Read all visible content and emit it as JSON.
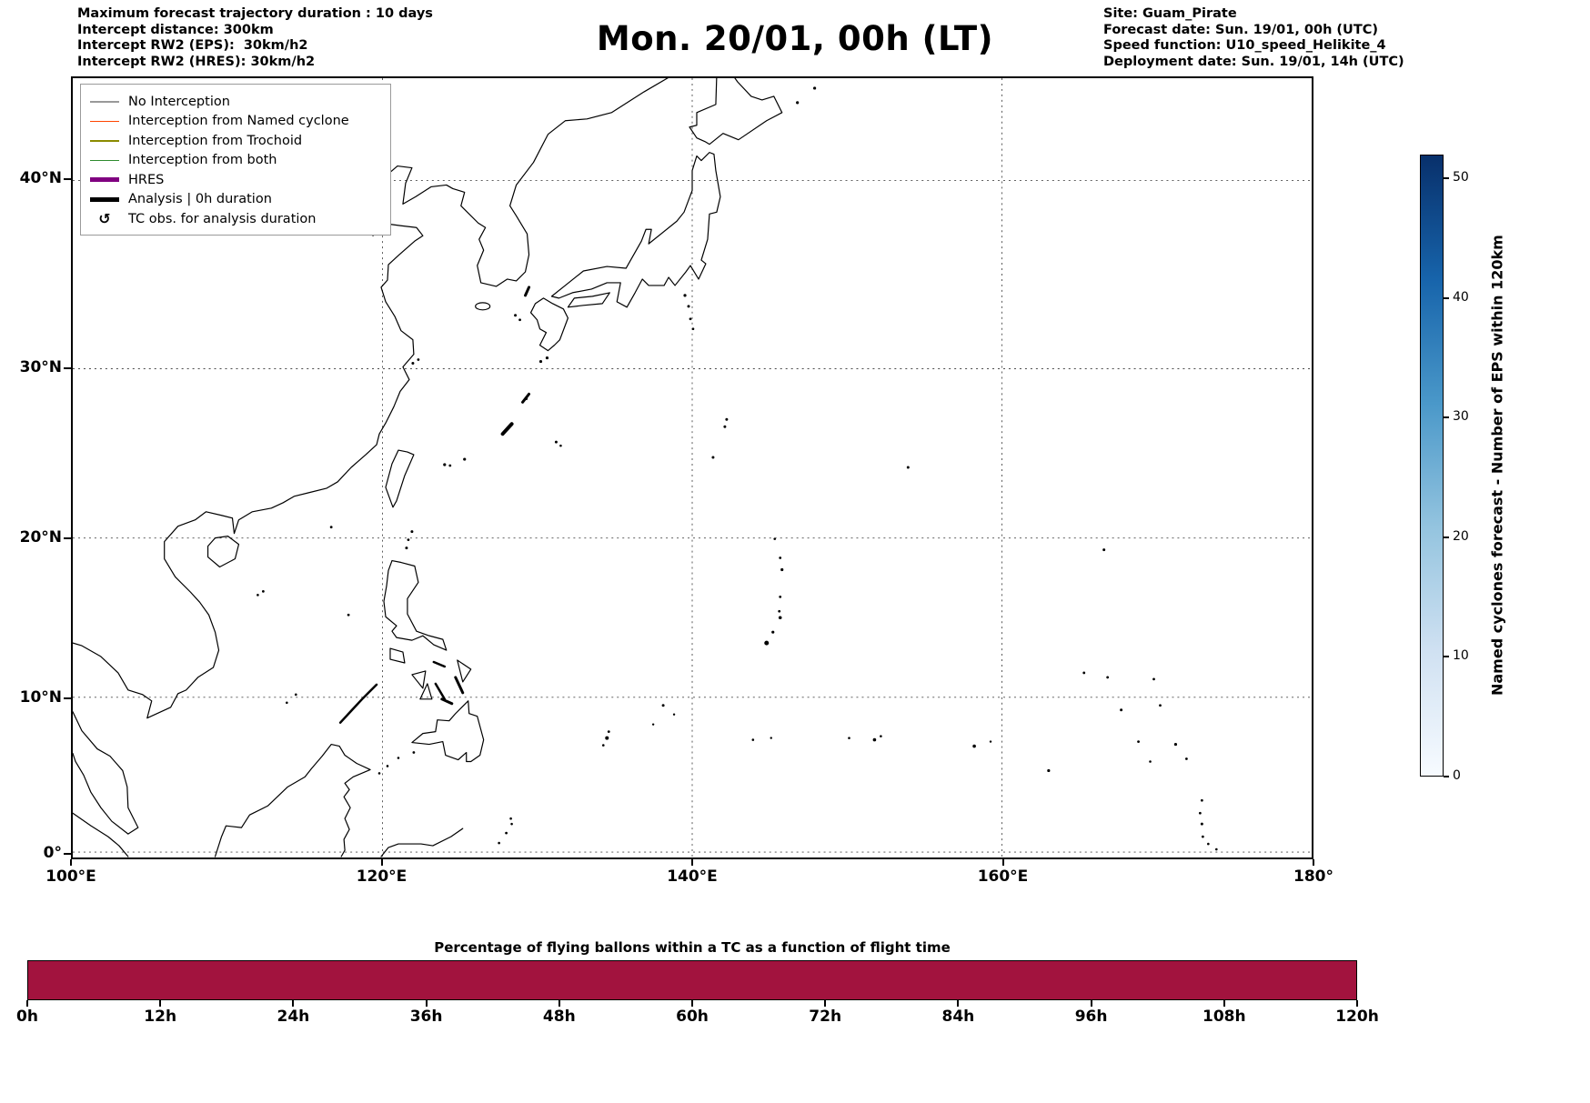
{
  "header": {
    "left_info": [
      "Maximum forecast trajectory duration : 10 days",
      "Intercept distance: 300km",
      "Intercept RW2 (EPS):  30km/h2",
      "Intercept RW2 (HRES): 30km/h2"
    ],
    "title": "Mon. 20/01, 00h (LT)",
    "right_info": [
      "Site: Guam_Pirate",
      "Forecast date: Sun. 19/01, 00h (UTC)",
      "Speed function: U10_speed_Helikite_4",
      "Deployment date: Sun. 19/01, 14h (UTC)"
    ]
  },
  "map": {
    "x_tick_labels": [
      "100°E",
      "120°E",
      "140°E",
      "160°E",
      "180°"
    ],
    "y_tick_labels": [
      "40°N",
      "30°N",
      "20°N",
      "10°N",
      "0°"
    ],
    "legend_items": [
      {
        "label": "No Interception",
        "color": "#999999",
        "line_width": 1.5
      },
      {
        "label": "Interception from Named cyclone",
        "color": "#ff4500",
        "line_width": 1.5
      },
      {
        "label": "Interception from Trochoid",
        "color": "#8b8b00",
        "line_width": 1.5
      },
      {
        "label": "Interception from both",
        "color": "#2e8b2e",
        "line_width": 1.5
      },
      {
        "label": "HRES",
        "color": "#800080",
        "line_width": 5
      },
      {
        "label": "Analysis | 0h duration",
        "color": "#000000",
        "line_width": 5
      },
      {
        "label": "TC obs. for analysis duration",
        "symbol": "↺",
        "color": "#000000"
      }
    ]
  },
  "colorbar": {
    "label": "Named cyclones forecast - Number of EPS within 120km",
    "tick_labels": [
      "0",
      "10",
      "20",
      "30",
      "40",
      "50"
    ],
    "tick_values": [
      0,
      10,
      20,
      30,
      40,
      50
    ],
    "vmin": 0,
    "vmax": 52,
    "colors": [
      "#f7fbff",
      "#d0e1f2",
      "#94c4df",
      "#4a98c9",
      "#1764ab",
      "#08306b"
    ]
  },
  "bottom_chart": {
    "title": "Percentage of flying ballons within a TC as a function of flight time",
    "x_tick_labels": [
      "0h",
      "12h",
      "24h",
      "36h",
      "48h",
      "60h",
      "72h",
      "84h",
      "96h",
      "108h",
      "120h"
    ],
    "bar_color": "#a2133e"
  },
  "chart_data": [
    {
      "type": "map",
      "title": "Mon. 20/01, 00h (LT)",
      "region": "East Asia / Western North Pacific coastlines",
      "x_ticks": [
        "100°E",
        "120°E",
        "140°E",
        "160°E",
        "180°"
      ],
      "y_ticks": [
        "40°N",
        "30°N",
        "20°N",
        "10°N",
        "0°"
      ],
      "x_range_deg": [
        100,
        180
      ],
      "y_range_deg": [
        0,
        45
      ],
      "grid": true,
      "legend_position": "upper left",
      "legend_entries": [
        "No Interception",
        "Interception from Named cyclone",
        "Interception from Trochoid",
        "Interception from both",
        "HRES",
        "Analysis | 0h duration",
        "TC obs. for analysis duration"
      ],
      "colorbar": {
        "label": "Named cyclones forecast - Number of EPS within 120km",
        "ticks": [
          0,
          10,
          20,
          30,
          40,
          50
        ],
        "range": [
          0,
          52
        ],
        "colormap": "Blues"
      },
      "plotted_series": "no trajectory lines visible; coastlines and gridlines only"
    },
    {
      "type": "bar",
      "title": "Percentage of flying ballons within a TC as a function of flight time",
      "categories": [
        "0h",
        "12h",
        "24h",
        "36h",
        "48h",
        "60h",
        "72h",
        "84h",
        "96h",
        "108h",
        "120h"
      ],
      "x_range_hours": [
        0,
        120
      ],
      "values": "single solid filled bar spanning the full 0h–120h range at constant full height (no y-axis scale shown)",
      "bar_color": "#a2133e"
    }
  ]
}
